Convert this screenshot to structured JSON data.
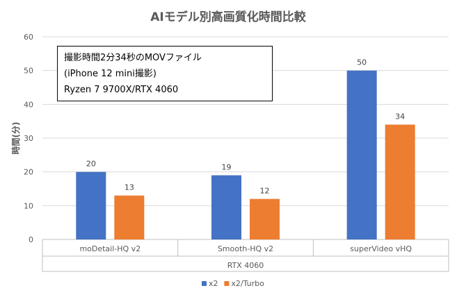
{
  "chart_data": {
    "type": "bar",
    "title": "AIモデル別高画質化時間比較",
    "ylabel": "時間(分)",
    "xlabel": "RTX 4060",
    "categories": [
      "moDetail-HQ v2",
      "Smooth-HQ v2",
      "superVideo vHQ"
    ],
    "series": [
      {
        "name": "x2",
        "values": [
          20,
          19,
          50
        ],
        "color": "#4472C4"
      },
      {
        "name": "x2/Turbo",
        "values": [
          13,
          12,
          34
        ],
        "color": "#ED7D31"
      }
    ],
    "ylim": [
      0,
      60
    ],
    "yticks": [
      0,
      10,
      20,
      30,
      40,
      50,
      60
    ],
    "grid": true,
    "legend_position": "bottom",
    "data_labels": true
  },
  "annotation": {
    "lines": [
      "撮影時間2分34秒のMOVファイル",
      "(iPhone 12 mini撮影)",
      "Ryzen 7 9700X/RTX 4060"
    ]
  }
}
